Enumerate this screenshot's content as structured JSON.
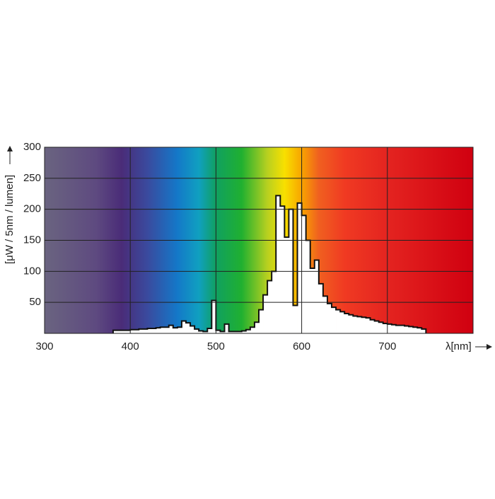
{
  "chart_data": {
    "type": "histogram",
    "y_label": "[μW / 5nm / lumen]",
    "x_label": "λ[nm]",
    "bins": [
      380,
      385,
      390,
      395,
      400,
      405,
      410,
      415,
      420,
      425,
      430,
      435,
      440,
      445,
      450,
      455,
      460,
      465,
      470,
      475,
      480,
      485,
      490,
      495,
      500,
      505,
      510,
      515,
      520,
      525,
      530,
      535,
      540,
      545,
      550,
      555,
      560,
      565,
      570,
      575,
      580,
      585,
      590,
      595,
      600,
      605,
      610,
      615,
      620,
      625,
      630,
      635,
      640,
      645,
      650,
      655,
      660,
      665,
      670,
      675,
      680,
      685,
      690,
      695,
      700,
      705,
      710,
      715,
      720,
      725,
      730,
      735,
      740,
      745
    ],
    "values": [
      5,
      5,
      5,
      5,
      6,
      6,
      7,
      7,
      8,
      8,
      9,
      10,
      10,
      13,
      9,
      10,
      20,
      17,
      12,
      7,
      4,
      3,
      8,
      53,
      5,
      3,
      15,
      3,
      3,
      3,
      4,
      6,
      10,
      18,
      38,
      62,
      85,
      100,
      222,
      205,
      155,
      200,
      45,
      210,
      190,
      150,
      105,
      118,
      80,
      60,
      48,
      42,
      38,
      35,
      32,
      30,
      28,
      27,
      26,
      25,
      22,
      20,
      18,
      16,
      15,
      14,
      13,
      13,
      12,
      11,
      10,
      9,
      7
    ],
    "color": "#ffffff",
    "xlim": [
      300,
      800
    ],
    "xticks": [
      300,
      400,
      500,
      600,
      700
    ],
    "ylim": [
      0,
      300
    ],
    "yticks": [
      50,
      100,
      150,
      200,
      250,
      300
    ],
    "grid": true
  }
}
